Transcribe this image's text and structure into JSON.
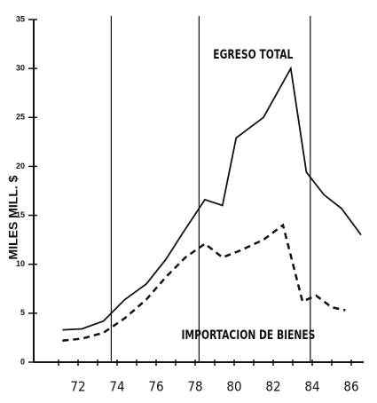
{
  "chart_data": {
    "type": "line",
    "ylabel": "MILES MILL. $",
    "annotations": [
      "EGRESO TOTAL",
      "IMPORTACION DE BIENES"
    ],
    "series": [
      {
        "name": "EGRESO TOTAL",
        "color": "#111111",
        "dash": false,
        "x": [
          71.2,
          72.2,
          73.3,
          74.4,
          75.5,
          76.5,
          77.4,
          78.5,
          79.4,
          80.1,
          81.5,
          82.9,
          83.7,
          84.6,
          85.5,
          86.5
        ],
        "values": [
          3.3,
          3.4,
          4.2,
          6.4,
          8,
          10.5,
          13.3,
          16.6,
          16,
          22.9,
          25,
          30,
          19.4,
          17.1,
          15.7,
          13
        ]
      },
      {
        "name": "IMPORTACION DE BIENES",
        "color": "#111111",
        "dash": true,
        "x": [
          71.2,
          72.2,
          73.3,
          74.4,
          75.5,
          76.5,
          77.5,
          78.5,
          79.4,
          80.3,
          81.5,
          82.5,
          83.5,
          84.2,
          85.0,
          85.7
        ],
        "values": [
          2.2,
          2.4,
          3,
          4.5,
          6.4,
          8.7,
          10.7,
          12.1,
          10.7,
          11.4,
          12.5,
          14,
          6.2,
          6.8,
          5.6,
          5.3
        ]
      }
    ],
    "vlines": [
      73.7,
      78.2,
      83.9
    ],
    "xlim": [
      70,
      87
    ],
    "ylim": [
      0,
      35
    ],
    "xticks": [
      72,
      74,
      76,
      78,
      80,
      82,
      84,
      86
    ],
    "xminorticks": [
      71,
      72,
      73,
      74,
      75,
      76,
      77,
      78,
      79,
      80,
      81,
      82,
      83,
      84,
      85,
      86
    ],
    "yticks": [
      0,
      5,
      10,
      15,
      20,
      25,
      30,
      35
    ]
  }
}
